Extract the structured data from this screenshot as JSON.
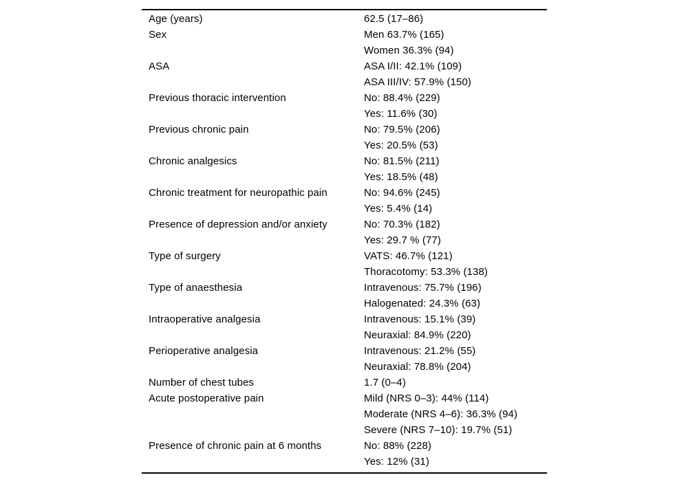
{
  "table": {
    "name": "patient-characteristics-table",
    "colors": {
      "text": "#000000",
      "rule": "#000000",
      "background": "#ffffff"
    },
    "rows": [
      {
        "label": "Age (years)",
        "values": [
          "62.5 (17–86)"
        ]
      },
      {
        "label": "Sex",
        "values": [
          "Men 63.7% (165)",
          "Women 36.3% (94)"
        ]
      },
      {
        "label": "ASA",
        "values": [
          "ASA I/II: 42.1% (109)",
          "ASA III/IV: 57.9% (150)"
        ]
      },
      {
        "label": "Previous thoracic intervention",
        "values": [
          "No: 88.4% (229)",
          "Yes: 11.6% (30)"
        ]
      },
      {
        "label": "Previous chronic pain",
        "values": [
          "No: 79.5% (206)",
          "Yes: 20.5% (53)"
        ]
      },
      {
        "label": "Chronic analgesics",
        "values": [
          "No: 81.5% (211)",
          "Yes: 18.5% (48)"
        ]
      },
      {
        "label": "Chronic treatment for neuropathic pain",
        "values": [
          "No: 94.6% (245)",
          "Yes: 5.4% (14)"
        ]
      },
      {
        "label": "Presence of depression and/or anxiety",
        "values": [
          "No: 70.3% (182)",
          "Yes: 29.7 % (77)"
        ]
      },
      {
        "label": "Type of surgery",
        "values": [
          "VATS: 46.7% (121)",
          "Thoracotomy: 53.3% (138)"
        ]
      },
      {
        "label": "Type of anaesthesia",
        "values": [
          "Intravenous: 75.7% (196)",
          "Halogenated: 24.3% (63)"
        ]
      },
      {
        "label": "Intraoperative analgesia",
        "values": [
          "Intravenous: 15.1% (39)",
          "Neuraxial: 84.9% (220)"
        ]
      },
      {
        "label": "Perioperative analgesia",
        "values": [
          "Intravenous: 21.2% (55)",
          "Neuraxial: 78.8% (204)"
        ]
      },
      {
        "label": "Number of chest tubes",
        "values": [
          "1.7 (0–4)"
        ]
      },
      {
        "label": "Acute postoperative pain",
        "values": [
          "Mild (NRS 0–3): 44% (114)",
          "Moderate (NRS 4–6): 36.3% (94)",
          "Severe (NRS 7–10): 19.7% (51)"
        ]
      },
      {
        "label": "Presence of chronic pain at 6 months",
        "values": [
          "No: 88% (228)",
          "Yes: 12% (31)"
        ]
      }
    ]
  }
}
